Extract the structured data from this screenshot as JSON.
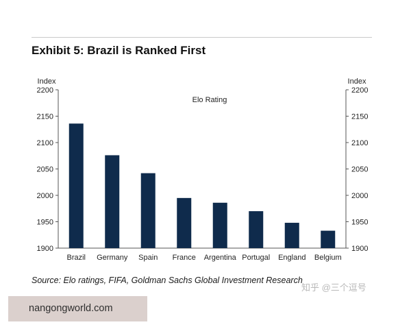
{
  "header": {
    "title": "Exhibit 5: Brazil is Ranked First"
  },
  "chart_data": {
    "type": "bar",
    "title": "Exhibit 5: Brazil is Ranked First",
    "series_label": "Elo Rating",
    "categories": [
      "Brazil",
      "Germany",
      "Spain",
      "France",
      "Argentina",
      "Portugal",
      "England",
      "Belgium"
    ],
    "values": [
      2136,
      2076,
      2042,
      1995,
      1986,
      1970,
      1948,
      1933
    ],
    "ylabel_left": "Index",
    "ylabel_right": "Index",
    "ylim": [
      1900,
      2200
    ],
    "yticks": [
      "1900",
      "1950",
      "2000",
      "2050",
      "2100",
      "2150",
      "2200"
    ],
    "bar_color": "#0f2b4c",
    "grid": false,
    "legend": "top-center"
  },
  "footer": {
    "source": "Source:  Elo ratings, FIFA, Goldman Sachs Global Investment Research",
    "watermark": "知乎 @三个逗号"
  },
  "banner": {
    "site": "nangongworld.com"
  }
}
